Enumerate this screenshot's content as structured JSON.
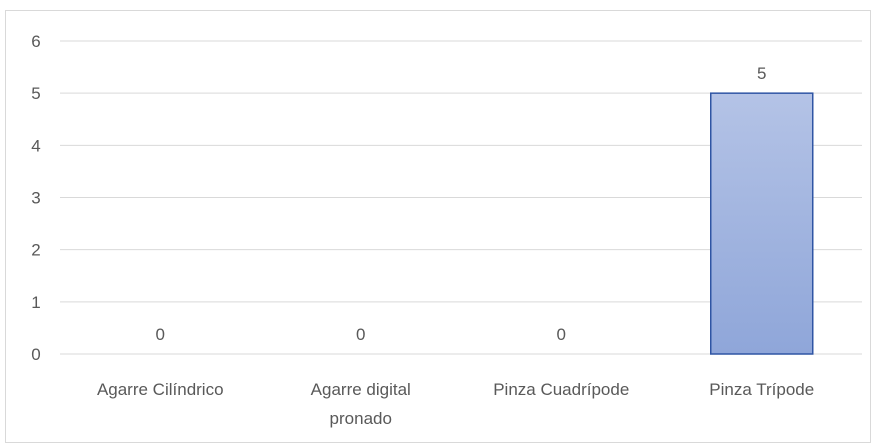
{
  "chart_data": {
    "type": "bar",
    "categories": [
      "Agarre Cilíndrico",
      "Agarre digital pronado",
      "Pinza Cuadrípode",
      "Pinza Trípode"
    ],
    "category_lines": [
      [
        "Agarre Cilíndrico"
      ],
      [
        "Agarre digital",
        "pronado"
      ],
      [
        "Pinza Cuadrípode"
      ],
      [
        "Pinza Trípode"
      ]
    ],
    "values": [
      0,
      0,
      0,
      5
    ],
    "data_labels": [
      "0",
      "0",
      "0",
      "5"
    ],
    "y_ticks": [
      "0",
      "1",
      "2",
      "3",
      "4",
      "5",
      "6"
    ],
    "ylim": [
      0,
      6
    ],
    "title": "",
    "xlabel": "",
    "ylabel": "",
    "grid": true,
    "legend": "none",
    "colors": {
      "bar_fill_top": "#b4c3e6",
      "bar_fill_bottom": "#8fa6d9",
      "bar_stroke": "#2f55a4",
      "grid": "#d9d9d9",
      "text": "#595959"
    }
  }
}
